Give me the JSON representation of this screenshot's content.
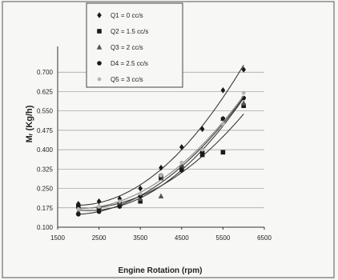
{
  "chart_data": {
    "type": "scatter",
    "title": "",
    "xlabel": "Engine Rotation (rpm)",
    "ylabel": "Mᵣ (Kg/h)",
    "xlim": [
      1500,
      6500
    ],
    "ylim": [
      0.1,
      0.775
    ],
    "x_ticks": [
      1500,
      2500,
      3500,
      4500,
      5500,
      6500
    ],
    "x_tick_labels": [
      "1500",
      "2500",
      "3500",
      "4500",
      "5500",
      "6500"
    ],
    "y_ticks": [
      0.1,
      0.175,
      0.25,
      0.325,
      0.4,
      0.475,
      0.55,
      0.625,
      0.7
    ],
    "y_tick_labels": [
      "0.100",
      "0.175",
      "0.250",
      "0.325",
      "0.400",
      "0.475",
      "0.550",
      "0.625",
      "0.700"
    ],
    "grid": "horizontal",
    "trendlines": true,
    "legend_position": "top-center",
    "series": [
      {
        "name": "Q1 = 0 cc/s",
        "marker": "diamond",
        "color": "#1a1a1a",
        "x": [
          2000,
          2500,
          3000,
          3500,
          4000,
          4500,
          5000,
          5500,
          6000
        ],
        "y": [
          0.19,
          0.2,
          0.21,
          0.25,
          0.33,
          0.41,
          0.48,
          0.63,
          0.71
        ]
      },
      {
        "name": "Q2 = 1.5 cc/s",
        "marker": "square",
        "color": "#1a1a1a",
        "x": [
          2000,
          2500,
          3000,
          3500,
          4000,
          4500,
          5000,
          5500,
          6000
        ],
        "y": [
          0.18,
          0.17,
          0.19,
          0.2,
          0.29,
          0.33,
          0.38,
          0.39,
          0.57
        ]
      },
      {
        "name": "Q3 = 2 cc/s",
        "marker": "triangle",
        "color": "#555555",
        "x": [
          2000,
          2500,
          3000,
          3500,
          4000,
          4500,
          5000,
          5500,
          6000
        ],
        "y": [
          0.16,
          0.18,
          0.19,
          0.21,
          0.22,
          0.34,
          0.4,
          0.52,
          0.58
        ]
      },
      {
        "name": "D4 = 2.5 cc/s",
        "marker": "circle",
        "color": "#1a1a1a",
        "x": [
          2000,
          2500,
          3000,
          3500,
          4000,
          4500,
          5000,
          5500,
          6000
        ],
        "y": [
          0.15,
          0.16,
          0.18,
          0.22,
          0.3,
          0.32,
          0.39,
          0.52,
          0.6
        ]
      },
      {
        "name": "Q5 = 3 cc/s",
        "marker": "dot",
        "color": "#b5b5b5",
        "x": [
          2000,
          2500,
          3000,
          3500,
          4000,
          4500,
          5000,
          5500,
          6000
        ],
        "y": [
          0.17,
          0.18,
          0.2,
          0.23,
          0.3,
          0.35,
          0.4,
          0.5,
          0.62
        ]
      }
    ]
  }
}
